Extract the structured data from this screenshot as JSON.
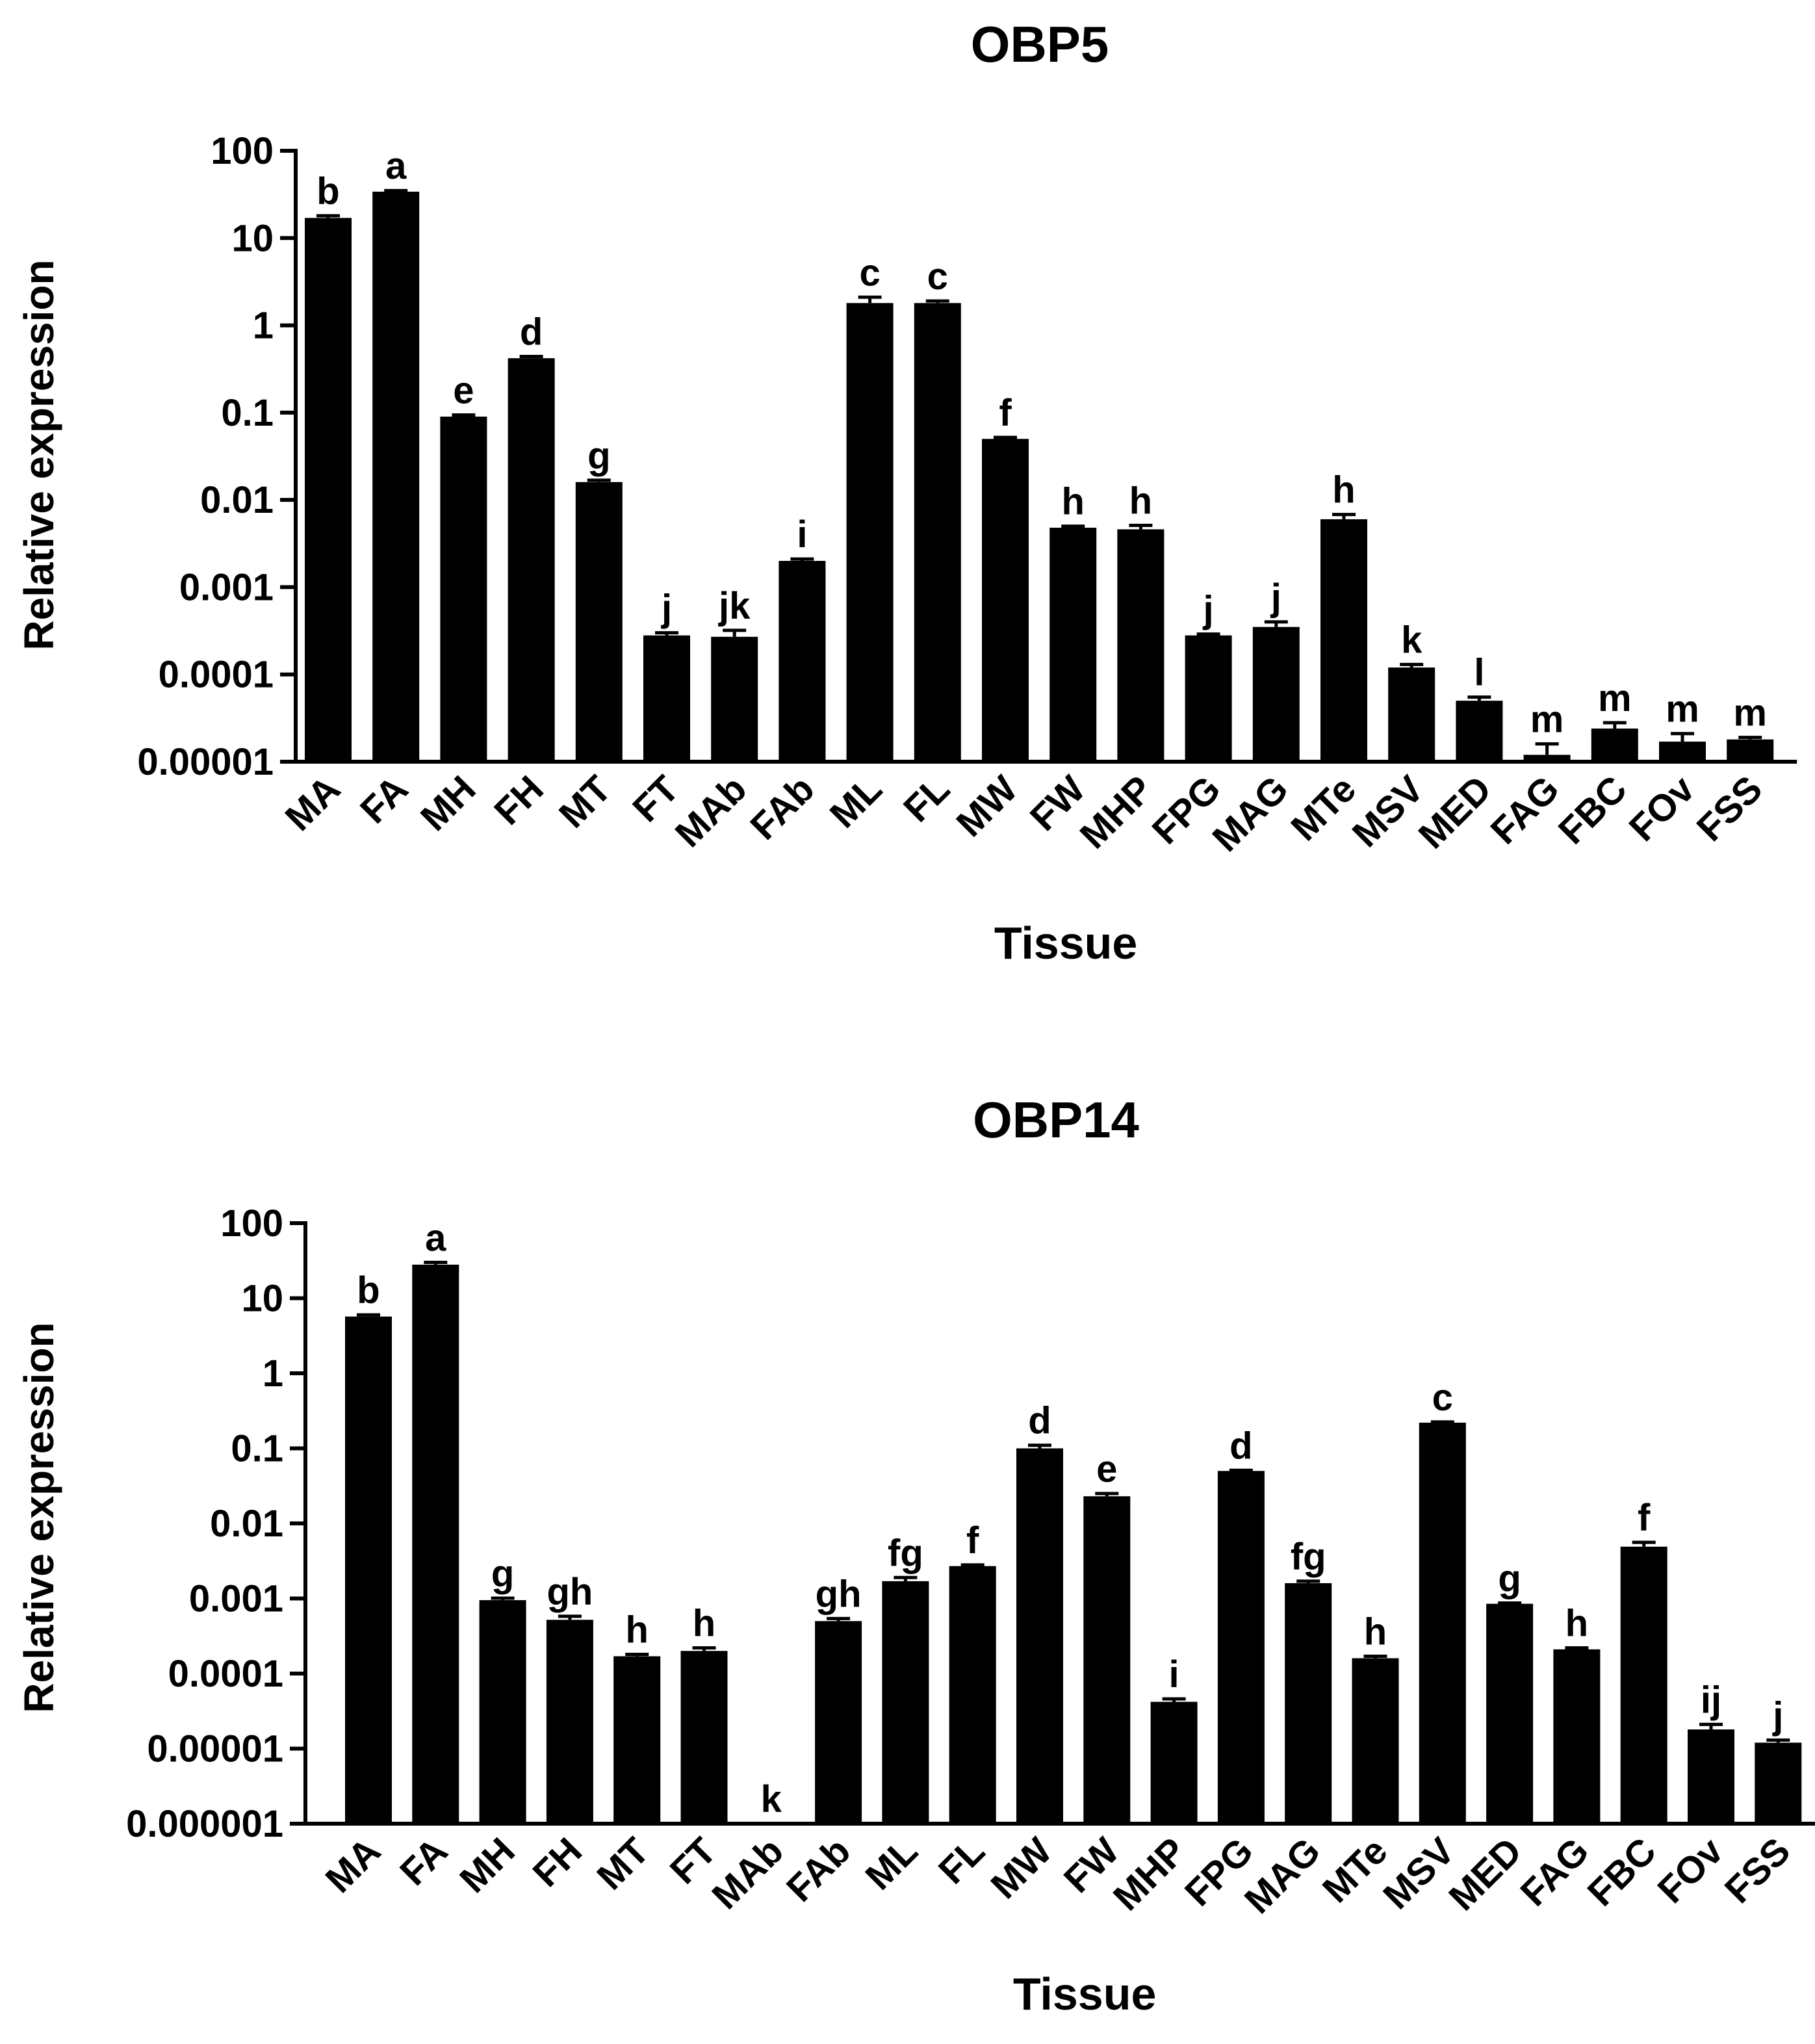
{
  "chart_data": [
    {
      "type": "bar",
      "title": "OBP5",
      "xlabel": "Tissue",
      "ylabel": "Relative expression",
      "yscale": "log",
      "ylim": [
        1e-05,
        100
      ],
      "yticks": [
        "100",
        "10",
        "1",
        "0.1",
        "0.01",
        "0.001",
        "0.0001",
        "0.00001"
      ],
      "colors": {
        "bar": "#000000",
        "axis": "#000000"
      },
      "categories": [
        "MA",
        "FA",
        "MH",
        "FH",
        "MT",
        "FT",
        "MAb",
        "FAb",
        "ML",
        "FL",
        "MW",
        "FW",
        "MHP",
        "FPG",
        "MAG",
        "MTe",
        "MSV",
        "MED",
        "FAG",
        "FBC",
        "FOv",
        "FSS"
      ],
      "values": [
        17,
        34,
        0.09,
        0.42,
        0.016,
        0.00028,
        0.00027,
        0.002,
        1.8,
        1.8,
        0.05,
        0.0048,
        0.0046,
        0.00028,
        0.00035,
        0.006,
        0.00012,
        5e-05,
        1.2e-05,
        2.4e-05,
        1.7e-05,
        1.8e-05
      ],
      "errors": [
        1,
        1,
        0.004,
        0.02,
        0.0008,
        2e-05,
        5e-05,
        0.0001,
        0.3,
        0.1,
        0.002,
        0.0002,
        0.0005,
        1e-05,
        5e-05,
        0.0008,
        1e-05,
        5e-06,
        4e-06,
        4e-06,
        4e-06,
        1e-06
      ],
      "significance": [
        "b",
        "a",
        "e",
        "d",
        "g",
        "j",
        "jk",
        "i",
        "c",
        "c",
        "f",
        "h",
        "h",
        "j",
        "j",
        "h",
        "k",
        "l",
        "m",
        "m",
        "m",
        "m"
      ]
    },
    {
      "type": "bar",
      "title": "OBP14",
      "xlabel": "Tissue",
      "ylabel": "Relative expression",
      "yscale": "log",
      "ylim": [
        1e-06,
        100
      ],
      "yticks": [
        "100",
        "10",
        "1",
        "0.1",
        "0.01",
        "0.001",
        "0.0001",
        "0.00001",
        "0.000001"
      ],
      "colors": {
        "bar": "#000000",
        "axis": "#000000"
      },
      "categories": [
        "MA",
        "FA",
        "MH",
        "FH",
        "MT",
        "FT",
        "MAb",
        "FAb",
        "ML",
        "FL",
        "MW",
        "FW",
        "MHP",
        "FPG",
        "MAG",
        "MTe",
        "MSV",
        "MED",
        "FAG",
        "FBC",
        "FOv",
        "FSS"
      ],
      "values": [
        5.7,
        28,
        0.00095,
        0.00052,
        0.00017,
        0.0002,
        1e-06,
        0.0005,
        0.0017,
        0.0027,
        0.1,
        0.023,
        4.2e-05,
        0.05,
        0.0016,
        0.00016,
        0.22,
        0.00085,
        0.00021,
        0.0049,
        1.8e-05,
        1.2e-05
      ],
      "errors": [
        0.3,
        2,
        6e-05,
        6e-05,
        1e-05,
        2e-05,
        0,
        4e-05,
        0.0002,
        0.0001,
        0.01,
        0.002,
        4e-06,
        0.001,
        0.0001,
        1e-05,
        0.005,
        2e-05,
        1e-05,
        0.0007,
        3e-06,
        1e-06
      ],
      "significance": [
        "b",
        "a",
        "g",
        "gh",
        "h",
        "h",
        "k",
        "gh",
        "fg",
        "f",
        "d",
        "e",
        "i",
        "d",
        "fg",
        "h",
        "c",
        "g",
        "h",
        "f",
        "ij",
        "j"
      ]
    }
  ]
}
